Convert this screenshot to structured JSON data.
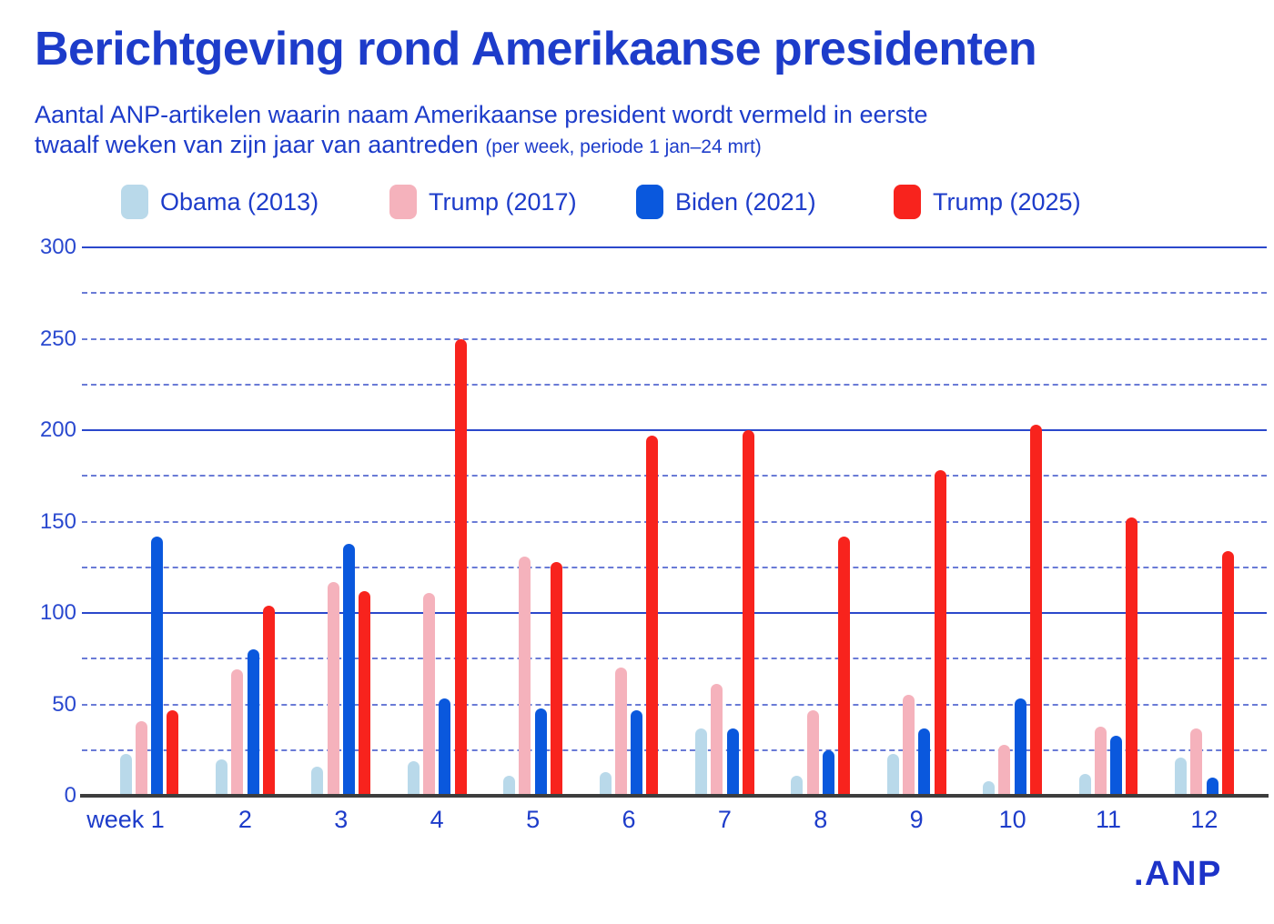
{
  "title": "Berichtgeving rond Amerikaanse presidenten",
  "subtitle": {
    "line1": "Aantal ANP-artikelen waarin naam Amerikaanse president wordt vermeld in eerste",
    "line2": "twaalf weken van zijn jaar van aantreden",
    "note": "(per week, periode 1 jan–24 mrt)"
  },
  "logo_text": ".ANP",
  "colors": {
    "brand_blue": "#1d3cca",
    "grid_solid": "#2b48cb",
    "grid_dashed": "#6a7bd6",
    "baseline": "#3d3d3d",
    "background": "#ffffff"
  },
  "chart_data": {
    "type": "bar",
    "title": "Berichtgeving rond Amerikaanse presidenten",
    "xlabel": "",
    "ylabel": "",
    "categories": [
      "week 1",
      "2",
      "3",
      "4",
      "5",
      "6",
      "7",
      "8",
      "9",
      "10",
      "11",
      "12"
    ],
    "series": [
      {
        "name": "Obama (2013)",
        "color": "#b9d9ea",
        "values": [
          23,
          20,
          16,
          19,
          11,
          13,
          37,
          11,
          23,
          8,
          12,
          21
        ]
      },
      {
        "name": "Trump (2017)",
        "color": "#f5b2bc",
        "values": [
          41,
          69,
          117,
          111,
          131,
          70,
          61,
          47,
          55,
          28,
          38,
          37
        ]
      },
      {
        "name": "Biden (2021)",
        "color": "#0a58dd",
        "values": [
          142,
          80,
          138,
          53,
          48,
          47,
          37,
          25,
          37,
          53,
          33,
          10
        ]
      },
      {
        "name": "Trump (2025)",
        "color": "#f8231d",
        "values": [
          47,
          104,
          112,
          250,
          128,
          197,
          200,
          142,
          178,
          203,
          152,
          134
        ]
      }
    ],
    "ylim": [
      0,
      300
    ],
    "yticks": [
      0,
      50,
      100,
      150,
      200,
      250,
      300
    ],
    "solid_gridlines": [
      100,
      200,
      300
    ],
    "dashed_gridlines": [
      25,
      50,
      75,
      125,
      150,
      175,
      225,
      250,
      275
    ],
    "grid": true,
    "legend_position": "top"
  }
}
